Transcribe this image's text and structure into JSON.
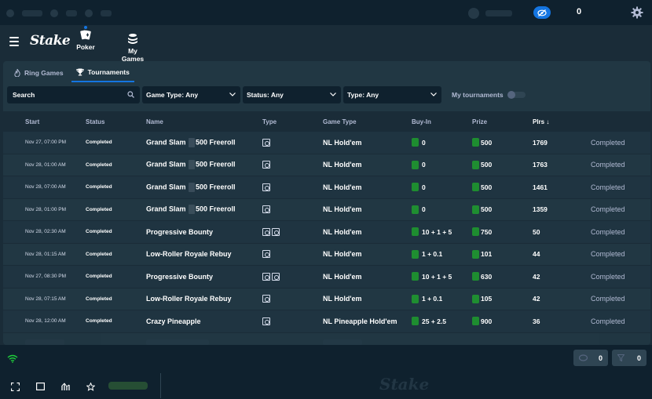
{
  "topbar": {
    "balance_display": "0"
  },
  "nav": {
    "logo": "Stake",
    "items": [
      {
        "label": "Poker",
        "icon": "poker-cards-icon"
      },
      {
        "label": "My Games",
        "icon": "chip-stack-icon"
      }
    ]
  },
  "tabs": [
    {
      "label": "Ring Games",
      "icon": "flame-icon"
    },
    {
      "label": "Tournaments",
      "icon": "trophy-icon",
      "active": true
    }
  ],
  "filters": {
    "search_placeholder": "Search",
    "game_type": "Game Type: Any",
    "status": "Status: Any",
    "type": "Type: Any",
    "my_tournaments_label": "My tournaments"
  },
  "table": {
    "headers": {
      "start": "Start",
      "status": "Status",
      "name": "Name",
      "type": "Type",
      "game_type": "Game Type",
      "buy_in": "Buy-In",
      "prize": "Prize",
      "plrs": "Plrs ↓"
    },
    "rows": [
      {
        "start": "Nov 27, 07:00 PM",
        "status": "Completed",
        "name_a": "Grand Slam",
        "name_b": "500 Freeroll",
        "game_type": "NL Hold'em",
        "buy_in": "0",
        "prize": "500",
        "plrs": "1769",
        "state": "Completed"
      },
      {
        "start": "Nov 28, 01:00 AM",
        "status": "Completed",
        "name_a": "Grand Slam",
        "name_b": "500 Freeroll",
        "game_type": "NL Hold'em",
        "buy_in": "0",
        "prize": "500",
        "plrs": "1763",
        "state": "Completed"
      },
      {
        "start": "Nov 28, 07:00 AM",
        "status": "Completed",
        "name_a": "Grand Slam",
        "name_b": "500 Freeroll",
        "game_type": "NL Hold'em",
        "buy_in": "0",
        "prize": "500",
        "plrs": "1461",
        "state": "Completed"
      },
      {
        "start": "Nov 28, 01:00 PM",
        "status": "Completed",
        "name_a": "Grand Slam",
        "name_b": "500 Freeroll",
        "game_type": "NL Hold'em",
        "buy_in": "0",
        "prize": "500",
        "plrs": "1359",
        "state": "Completed"
      },
      {
        "start": "Nov 28, 02:30 AM",
        "status": "Completed",
        "name": "Progressive Bounty",
        "game_type": "NL Hold'em",
        "buy_in": "10 + 1 + 5",
        "prize": "750",
        "plrs": "50",
        "state": "Completed"
      },
      {
        "start": "Nov 28, 01:15 AM",
        "status": "Completed",
        "name": "Low-Roller Royale Rebuy",
        "game_type": "NL Hold'em",
        "buy_in": "1 + 0.1",
        "prize": "101",
        "plrs": "44",
        "state": "Completed"
      },
      {
        "start": "Nov 27, 08:30 PM",
        "status": "Completed",
        "name": "Progressive Bounty",
        "game_type": "NL Hold'em",
        "buy_in": "10 + 1 + 5",
        "prize": "630",
        "plrs": "42",
        "state": "Completed"
      },
      {
        "start": "Nov 28, 07:15 AM",
        "status": "Completed",
        "name": "Low-Roller Royale Rebuy",
        "game_type": "NL Hold'em",
        "buy_in": "1 + 0.1",
        "prize": "105",
        "plrs": "42",
        "state": "Completed"
      },
      {
        "start": "Nov 28, 12:00 AM",
        "status": "Completed",
        "name": "Crazy Pineapple",
        "game_type": "NL Pineapple Hold'em",
        "buy_in": "25 + 2.5",
        "prize": "900",
        "plrs": "36",
        "state": "Completed"
      }
    ]
  },
  "bottom": {
    "tables_count": "0",
    "filter_count": "0",
    "watermark": "Stake"
  },
  "colors": {
    "accent": "#1475e1",
    "coin": "#1f9e2e",
    "bg": "#1a2c38",
    "panel": "#213743"
  }
}
